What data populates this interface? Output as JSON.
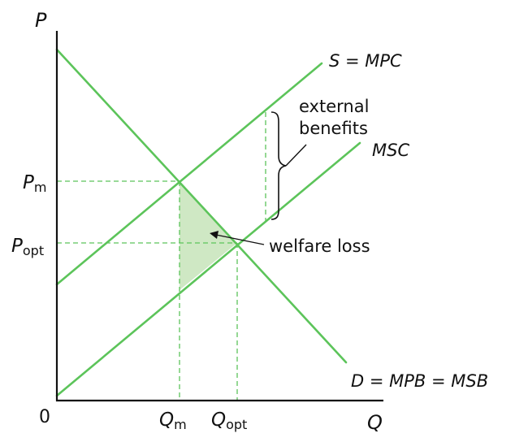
{
  "colors": {
    "curve": "#5cc45a",
    "guide": "#5cc45a",
    "shade": "#cfe8c4",
    "axis": "#111111",
    "text": "#111111"
  },
  "axes": {
    "y_label": "P",
    "x_label": "Q",
    "origin_label": "0"
  },
  "curves": {
    "supply": "S = MPC",
    "msc": "MSC",
    "demand": "D = MPB = MSB"
  },
  "price_labels": {
    "pm_main": "P",
    "pm_sub": "m",
    "popt_main": "P",
    "popt_sub": "opt"
  },
  "quantity_labels": {
    "qm_main": "Q",
    "qm_sub": "m",
    "qopt_main": "Q",
    "qopt_sub": "opt"
  },
  "annotations": {
    "external_line1": "external",
    "external_line2": "benefits",
    "welfare_loss": "welfare loss"
  }
}
